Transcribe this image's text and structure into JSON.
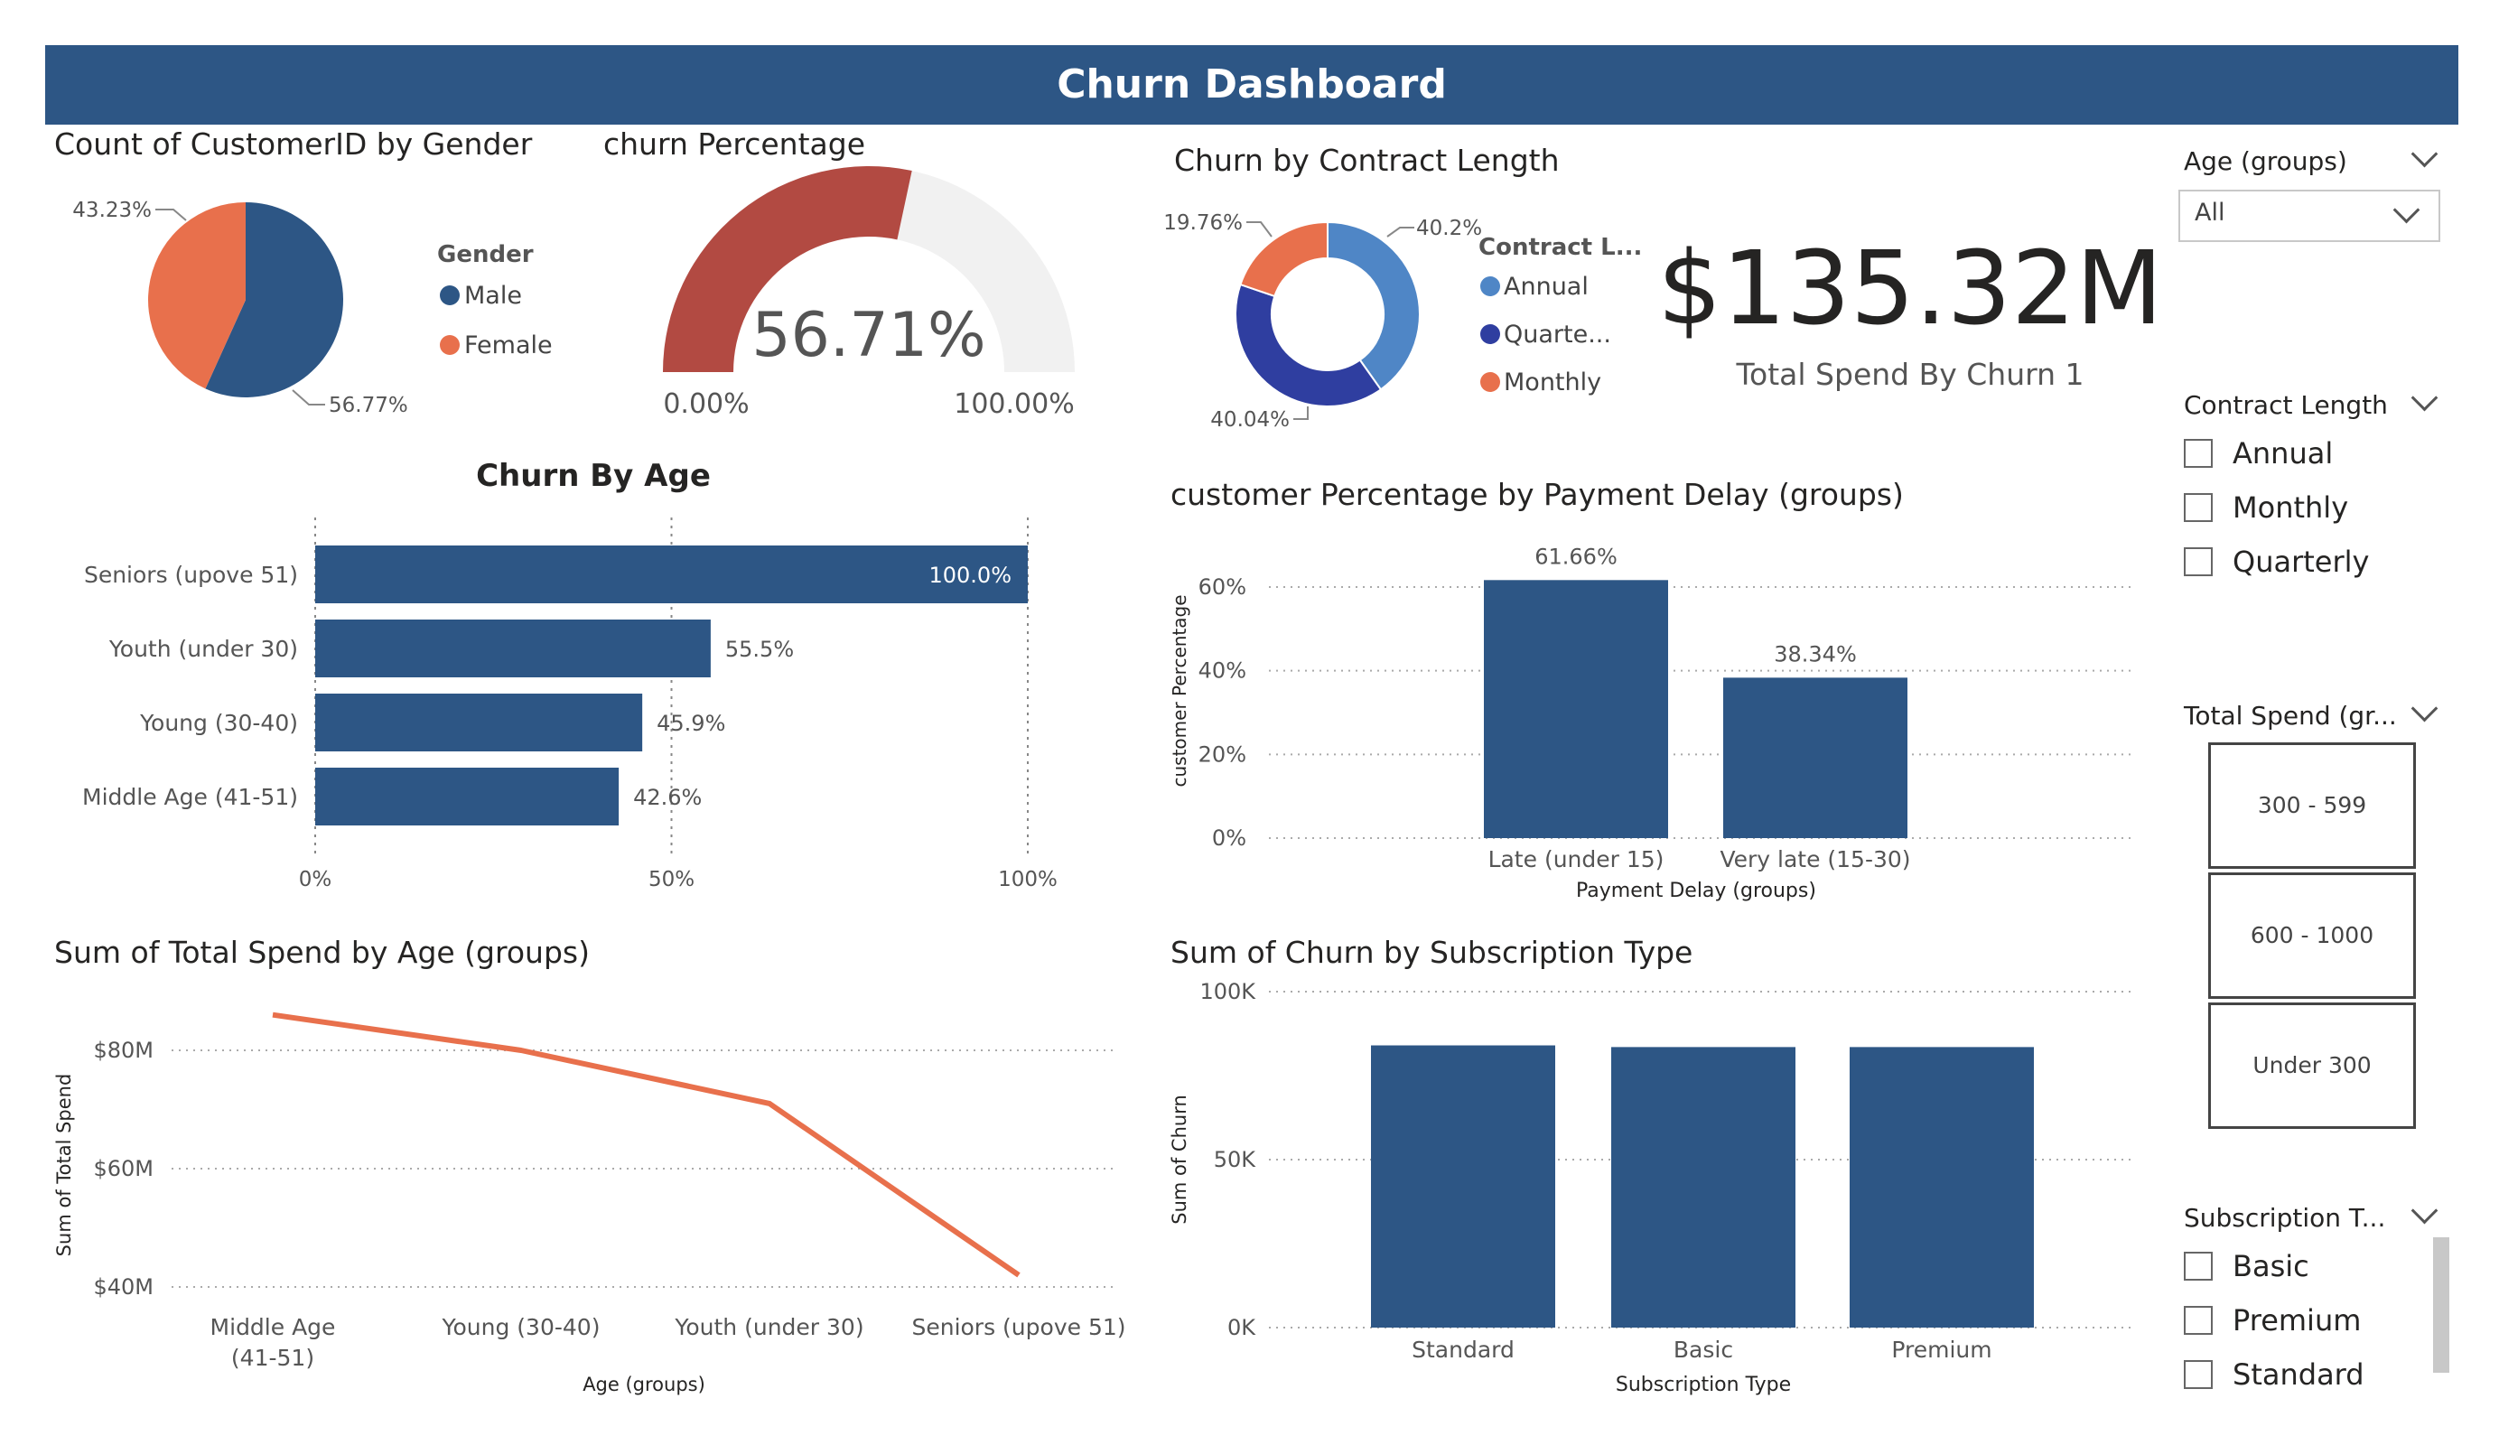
{
  "header": {
    "title": "Churn Dashboard"
  },
  "colors": {
    "navy": "#2d5685",
    "orange": "#e8704c",
    "red": "#b24a42",
    "light_blue": "#4f86c6",
    "indigo": "#2f3ea0",
    "gray": "#f1f1f1"
  },
  "gender_chart": {
    "title": "Count of CustomerID by Gender",
    "legend_title": "Gender",
    "chart_data": {
      "type": "pie",
      "title": "Count of CustomerID by Gender",
      "labels": [
        "Male",
        "Female"
      ],
      "values": [
        56.77,
        43.23
      ],
      "value_labels": [
        "56.77%",
        "43.23%"
      ],
      "colors": [
        "#2d5685",
        "#e8704c"
      ]
    }
  },
  "churn_gauge": {
    "title": "churn Percentage",
    "value_label": "56.71%",
    "min_label": "0.00%",
    "max_label": "100.00%",
    "chart_data": {
      "type": "gauge",
      "value": 56.71,
      "min": 0,
      "max": 100
    }
  },
  "contract_chart": {
    "title": "Churn by Contract Length",
    "legend_title": "Contract L...",
    "legend_labels": [
      "Annual",
      "Quarte...",
      "Monthly"
    ],
    "chart_data": {
      "type": "pie",
      "subtype": "donut",
      "labels": [
        "Annual",
        "Quarterly",
        "Monthly"
      ],
      "values": [
        40.2,
        40.04,
        19.76
      ],
      "value_labels": [
        "40.2%",
        "40.04%",
        "19.76%"
      ],
      "colors": [
        "#4f86c6",
        "#2f3ea0",
        "#e8704c"
      ]
    }
  },
  "kpi": {
    "value": "$135.32M",
    "label": "Total Spend By Churn 1"
  },
  "age_chart": {
    "title": "Churn By Age",
    "chart_data": {
      "type": "bar",
      "orientation": "horizontal",
      "title": "Churn By Age",
      "categories": [
        "Seniors (upove 51)",
        "Youth (under 30)",
        "Young (30-40)",
        "Middle Age (41-51)"
      ],
      "values": [
        100.0,
        55.5,
        45.9,
        42.6
      ],
      "value_labels": [
        "100.0%",
        "55.5%",
        "45.9%",
        "42.6%"
      ],
      "xlim": [
        0,
        100
      ],
      "xticks": [
        "0%",
        "50%",
        "100%"
      ]
    }
  },
  "payment_chart": {
    "title": "customer Percentage by Payment Delay (groups)",
    "chart_data": {
      "type": "bar",
      "title": "customer Percentage by Payment Delay (groups)",
      "categories": [
        "Late (under 15)",
        "Very late (15-30)"
      ],
      "values": [
        61.66,
        38.34
      ],
      "value_labels": [
        "61.66%",
        "38.34%"
      ],
      "ylim": [
        0,
        70
      ],
      "yticks": [
        "0%",
        "20%",
        "40%",
        "60%"
      ],
      "xlabel": "Payment Delay (groups)",
      "ylabel": "customer Percentage"
    }
  },
  "spend_chart": {
    "title": "Sum of Total Spend by Age (groups)",
    "chart_data": {
      "type": "line",
      "title": "Sum of Total Spend by Age (groups)",
      "categories": [
        "Middle Age (41-51)",
        "Young (30-40)",
        "Youth (under 30)",
        "Seniors (upove 51)"
      ],
      "category_lines": [
        [
          "Middle Age",
          "(41-51)"
        ],
        [
          "Young (30-40)"
        ],
        [
          "Youth (under 30)"
        ],
        [
          "Seniors (upove 51)"
        ]
      ],
      "values": [
        86,
        80,
        71,
        42
      ],
      "ylim": [
        40,
        90
      ],
      "yticks": [
        {
          "v": 40,
          "label": "$40M"
        },
        {
          "v": 60,
          "label": "$60M"
        },
        {
          "v": 80,
          "label": "$80M"
        }
      ],
      "xlabel": "Age (groups)",
      "ylabel": "Sum of Total Spend"
    }
  },
  "subscription_chart": {
    "title": "Sum of Churn by Subscription Type",
    "chart_data": {
      "type": "bar",
      "title": "Sum of Churn by Subscription Type",
      "categories": [
        "Standard",
        "Basic",
        "Premium"
      ],
      "values": [
        84000,
        83500,
        83500
      ],
      "ylim": [
        0,
        100000
      ],
      "yticks": [
        {
          "v": 0,
          "label": "0K"
        },
        {
          "v": 50000,
          "label": "50K"
        },
        {
          "v": 100000,
          "label": "100K"
        }
      ],
      "xlabel": "Subscription Type",
      "ylabel": "Sum of Churn"
    }
  },
  "slicers": {
    "age": {
      "title": "Age (groups)",
      "value": "All"
    },
    "contract": {
      "title": "Contract Length",
      "options": [
        "Annual",
        "Monthly",
        "Quarterly"
      ]
    },
    "total_spend": {
      "title": "Total Spend (gr...",
      "tiles": [
        "300 - 599",
        "600 - 1000",
        "Under 300"
      ]
    },
    "subscription": {
      "title": "Subscription T...",
      "options": [
        "Basic",
        "Premium",
        "Standard"
      ]
    }
  }
}
